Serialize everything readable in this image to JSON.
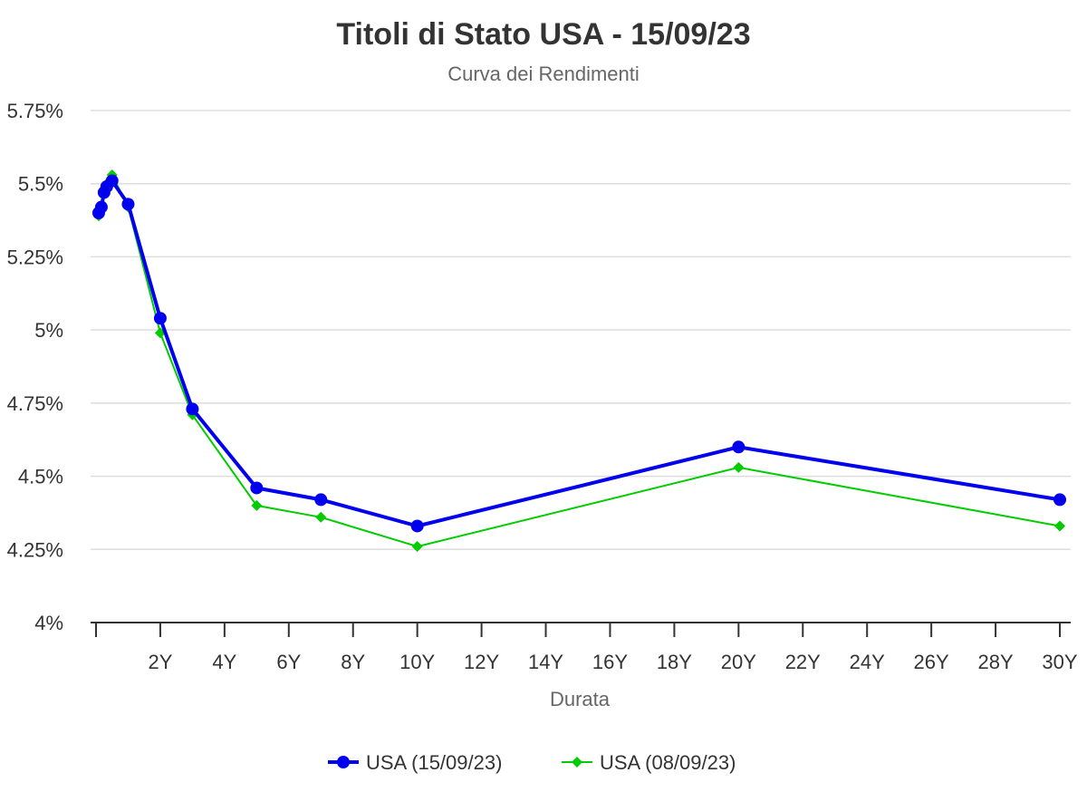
{
  "chart_data": {
    "type": "line",
    "title": "Titoli di Stato USA - 15/09/23",
    "subtitle": "Curva dei Rendimenti",
    "xlabel": "Durata",
    "ylabel": "",
    "xlim": [
      0,
      30
    ],
    "ylim": [
      4,
      5.75
    ],
    "x_ticks": [
      {
        "value": 2,
        "label": "2Y"
      },
      {
        "value": 4,
        "label": "4Y"
      },
      {
        "value": 6,
        "label": "6Y"
      },
      {
        "value": 8,
        "label": "8Y"
      },
      {
        "value": 10,
        "label": "10Y"
      },
      {
        "value": 12,
        "label": "12Y"
      },
      {
        "value": 14,
        "label": "14Y"
      },
      {
        "value": 16,
        "label": "16Y"
      },
      {
        "value": 18,
        "label": "18Y"
      },
      {
        "value": 20,
        "label": "20Y"
      },
      {
        "value": 22,
        "label": "22Y"
      },
      {
        "value": 24,
        "label": "24Y"
      },
      {
        "value": 26,
        "label": "26Y"
      },
      {
        "value": 28,
        "label": "28Y"
      },
      {
        "value": 30,
        "label": "30Y"
      }
    ],
    "y_ticks": [
      {
        "value": 4,
        "label": "4%"
      },
      {
        "value": 4.25,
        "label": "4.25%"
      },
      {
        "value": 4.5,
        "label": "4.5%"
      },
      {
        "value": 4.75,
        "label": "4.75%"
      },
      {
        "value": 5,
        "label": "5%"
      },
      {
        "value": 5.25,
        "label": "5.25%"
      },
      {
        "value": 5.5,
        "label": "5.5%"
      },
      {
        "value": 5.75,
        "label": "5.75%"
      }
    ],
    "grid": true,
    "legend_position": "bottom-center",
    "series": [
      {
        "name": "USA (15/09/23)",
        "color": "#0000ee",
        "marker": "circle",
        "points": [
          {
            "x": 0.083,
            "y": 5.4
          },
          {
            "x": 0.167,
            "y": 5.42
          },
          {
            "x": 0.25,
            "y": 5.47
          },
          {
            "x": 0.333,
            "y": 5.49
          },
          {
            "x": 0.5,
            "y": 5.51
          },
          {
            "x": 1,
            "y": 5.43
          },
          {
            "x": 2,
            "y": 5.04
          },
          {
            "x": 3,
            "y": 4.73
          },
          {
            "x": 5,
            "y": 4.46
          },
          {
            "x": 7,
            "y": 4.42
          },
          {
            "x": 10,
            "y": 4.33
          },
          {
            "x": 20,
            "y": 4.6
          },
          {
            "x": 30,
            "y": 4.42
          }
        ]
      },
      {
        "name": "USA (08/09/23)",
        "color": "#00cc00",
        "marker": "diamond",
        "points": [
          {
            "x": 0.083,
            "y": 5.39
          },
          {
            "x": 0.167,
            "y": 5.41
          },
          {
            "x": 0.25,
            "y": 5.48
          },
          {
            "x": 0.333,
            "y": 5.5
          },
          {
            "x": 0.5,
            "y": 5.53
          },
          {
            "x": 1,
            "y": 5.42
          },
          {
            "x": 2,
            "y": 4.99
          },
          {
            "x": 3,
            "y": 4.71
          },
          {
            "x": 5,
            "y": 4.4
          },
          {
            "x": 7,
            "y": 4.36
          },
          {
            "x": 10,
            "y": 4.26
          },
          {
            "x": 20,
            "y": 4.53
          },
          {
            "x": 30,
            "y": 4.33
          }
        ]
      }
    ]
  }
}
